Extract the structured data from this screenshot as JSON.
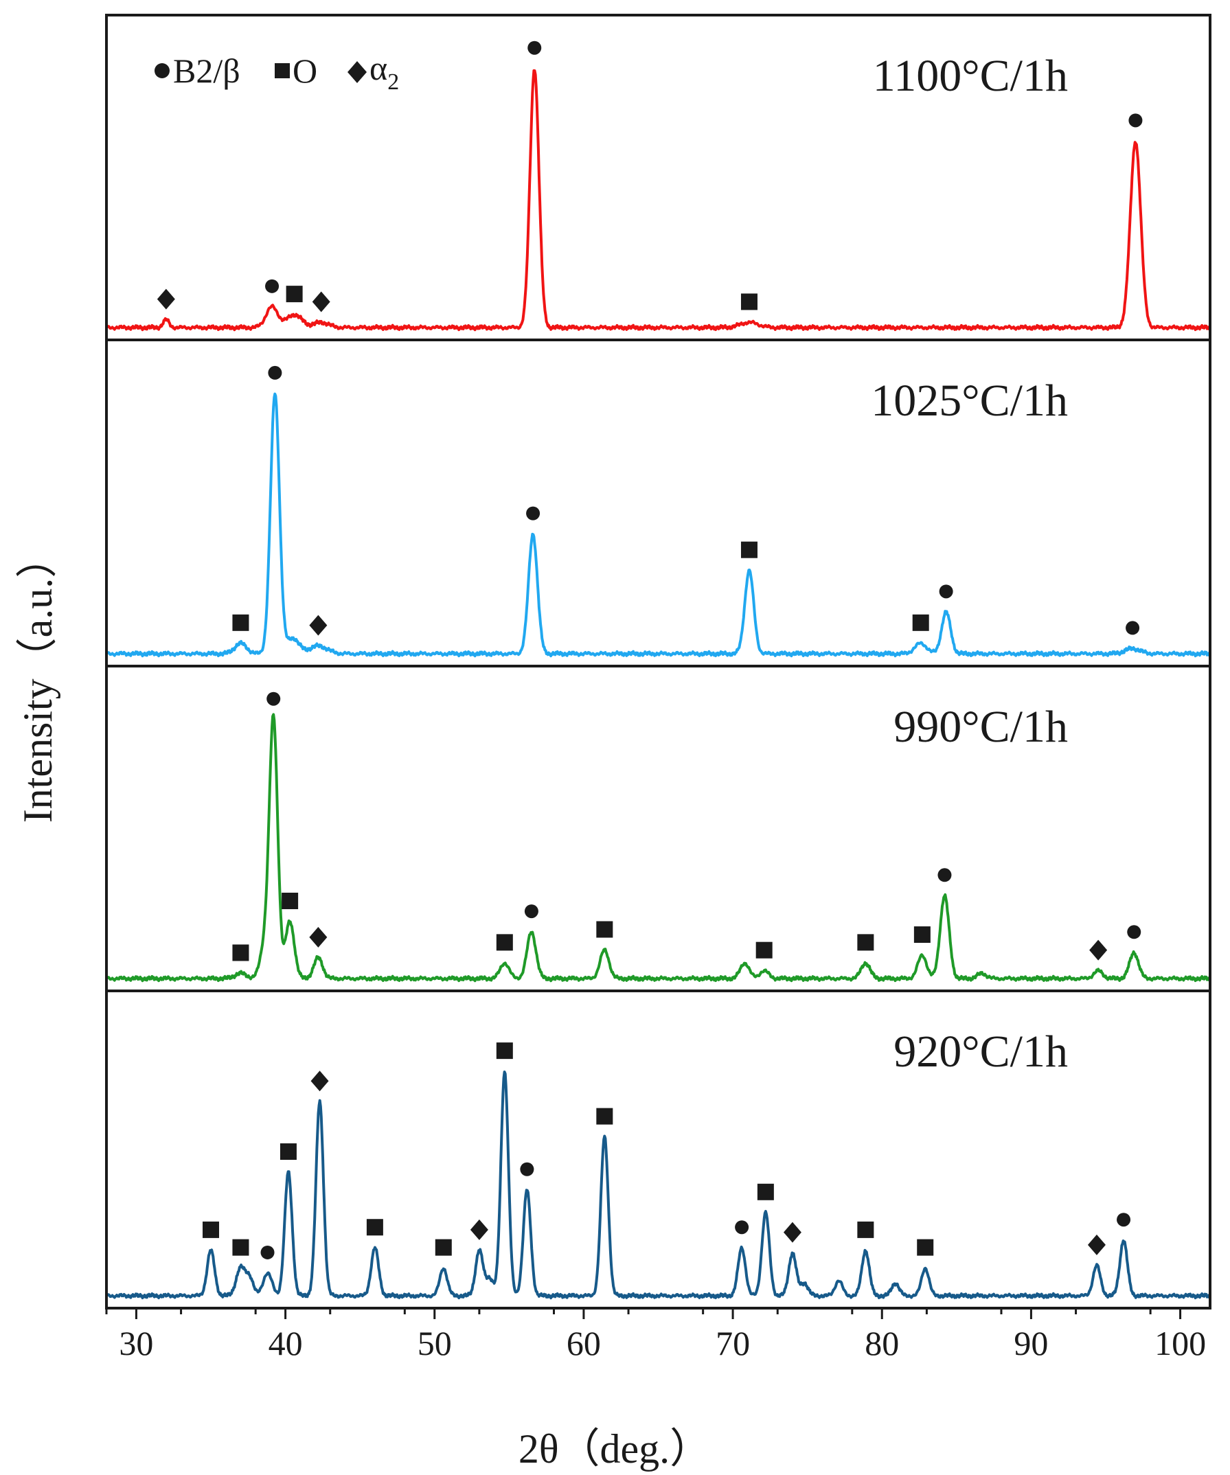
{
  "chart_data": {
    "type": "line",
    "stacked_panels": true,
    "xlabel": "2θ（deg.）",
    "ylabel": "Intensity（a.u.）",
    "xlim": [
      28,
      102
    ],
    "xticks": [
      30,
      40,
      50,
      60,
      70,
      80,
      90,
      100
    ],
    "legend": {
      "placement": "top-left",
      "entries": [
        {
          "marker": "circle",
          "label": "B2/β"
        },
        {
          "marker": "square",
          "label": "O"
        },
        {
          "marker": "diamond",
          "label": "α",
          "subscript": "2"
        }
      ]
    },
    "series": [
      {
        "name": "1100°C/1h",
        "color": "#f01414",
        "ylim": [
          0,
          110
        ],
        "peaks": [
          {
            "x": 32.0,
            "y": 3,
            "w": 0.2,
            "marker": "diamond"
          },
          {
            "x": 39.1,
            "y": 8,
            "w": 0.4,
            "marker": "circle"
          },
          {
            "x": 40.6,
            "y": 5,
            "w": 0.5,
            "marker": "square"
          },
          {
            "x": 42.4,
            "y": 2,
            "w": 0.5,
            "marker": "diamond"
          },
          {
            "x": 56.7,
            "y": 100,
            "w": 0.3,
            "marker": "circle"
          },
          {
            "x": 71.1,
            "y": 2,
            "w": 0.6,
            "marker": "square"
          },
          {
            "x": 97.0,
            "y": 72,
            "w": 0.35,
            "marker": "circle"
          }
        ]
      },
      {
        "name": "1025°C/1h",
        "color": "#21a8f0",
        "ylim": [
          0,
          110
        ],
        "peaks": [
          {
            "x": 37.0,
            "y": 4,
            "w": 0.4,
            "marker": "square"
          },
          {
            "x": 39.3,
            "y": 100,
            "w": 0.3,
            "marker": "circle"
          },
          {
            "x": 40.5,
            "y": 6,
            "w": 0.4
          },
          {
            "x": 42.2,
            "y": 3,
            "w": 0.6,
            "marker": "diamond"
          },
          {
            "x": 56.6,
            "y": 46,
            "w": 0.3,
            "marker": "circle"
          },
          {
            "x": 71.1,
            "y": 32,
            "w": 0.3,
            "marker": "square"
          },
          {
            "x": 82.6,
            "y": 4,
            "w": 0.4,
            "marker": "square"
          },
          {
            "x": 84.3,
            "y": 16,
            "w": 0.3,
            "marker": "circle"
          },
          {
            "x": 96.8,
            "y": 2,
            "w": 0.5,
            "marker": "circle"
          }
        ]
      },
      {
        "name": "990°C/1h",
        "color": "#1f9a28",
        "ylim": [
          0,
          110
        ],
        "peaks": [
          {
            "x": 37.0,
            "y": 2,
            "w": 0.4,
            "marker": "square"
          },
          {
            "x": 38.6,
            "y": 12,
            "w": 0.3
          },
          {
            "x": 39.2,
            "y": 100,
            "w": 0.28,
            "marker": "circle"
          },
          {
            "x": 40.3,
            "y": 22,
            "w": 0.3,
            "marker": "square"
          },
          {
            "x": 42.2,
            "y": 8,
            "w": 0.3,
            "marker": "diamond"
          },
          {
            "x": 54.7,
            "y": 6,
            "w": 0.3,
            "marker": "square"
          },
          {
            "x": 56.5,
            "y": 18,
            "w": 0.3,
            "marker": "circle"
          },
          {
            "x": 61.4,
            "y": 11,
            "w": 0.3,
            "marker": "square"
          },
          {
            "x": 70.8,
            "y": 6,
            "w": 0.3
          },
          {
            "x": 72.1,
            "y": 3,
            "w": 0.3,
            "marker": "square"
          },
          {
            "x": 78.9,
            "y": 6,
            "w": 0.3,
            "marker": "square"
          },
          {
            "x": 82.7,
            "y": 9,
            "w": 0.3,
            "marker": "square"
          },
          {
            "x": 84.2,
            "y": 32,
            "w": 0.3,
            "marker": "circle"
          },
          {
            "x": 86.7,
            "y": 2,
            "w": 0.3
          },
          {
            "x": 94.5,
            "y": 3,
            "w": 0.3,
            "marker": "diamond"
          },
          {
            "x": 96.9,
            "y": 10,
            "w": 0.3,
            "marker": "circle"
          }
        ]
      },
      {
        "name": "920°C/1h",
        "color": "#175a8a",
        "ylim": [
          0,
          110
        ],
        "peaks": [
          {
            "x": 35.0,
            "y": 18,
            "w": 0.25,
            "marker": "square"
          },
          {
            "x": 37.0,
            "y": 11,
            "w": 0.3,
            "marker": "square"
          },
          {
            "x": 37.6,
            "y": 7,
            "w": 0.25
          },
          {
            "x": 38.8,
            "y": 9,
            "w": 0.3,
            "marker": "circle"
          },
          {
            "x": 40.2,
            "y": 49,
            "w": 0.25,
            "marker": "square"
          },
          {
            "x": 42.3,
            "y": 77,
            "w": 0.25,
            "marker": "diamond"
          },
          {
            "x": 46.0,
            "y": 19,
            "w": 0.25,
            "marker": "square"
          },
          {
            "x": 50.6,
            "y": 11,
            "w": 0.25,
            "marker": "square"
          },
          {
            "x": 53.0,
            "y": 18,
            "w": 0.25,
            "marker": "diamond"
          },
          {
            "x": 53.7,
            "y": 7,
            "w": 0.25
          },
          {
            "x": 54.7,
            "y": 89,
            "w": 0.25,
            "marker": "square"
          },
          {
            "x": 56.2,
            "y": 42,
            "w": 0.25,
            "marker": "circle"
          },
          {
            "x": 61.4,
            "y": 63,
            "w": 0.25,
            "marker": "square"
          },
          {
            "x": 70.6,
            "y": 19,
            "w": 0.25,
            "marker": "circle"
          },
          {
            "x": 72.2,
            "y": 33,
            "w": 0.25,
            "marker": "square"
          },
          {
            "x": 74.0,
            "y": 17,
            "w": 0.25,
            "marker": "diamond"
          },
          {
            "x": 74.8,
            "y": 5,
            "w": 0.25
          },
          {
            "x": 77.1,
            "y": 6,
            "w": 0.25
          },
          {
            "x": 78.9,
            "y": 18,
            "w": 0.25,
            "marker": "square"
          },
          {
            "x": 80.9,
            "y": 5,
            "w": 0.25
          },
          {
            "x": 82.9,
            "y": 11,
            "w": 0.25,
            "marker": "square"
          },
          {
            "x": 94.4,
            "y": 12,
            "w": 0.25,
            "marker": "diamond"
          },
          {
            "x": 96.2,
            "y": 22,
            "w": 0.25,
            "marker": "circle"
          }
        ]
      }
    ]
  }
}
